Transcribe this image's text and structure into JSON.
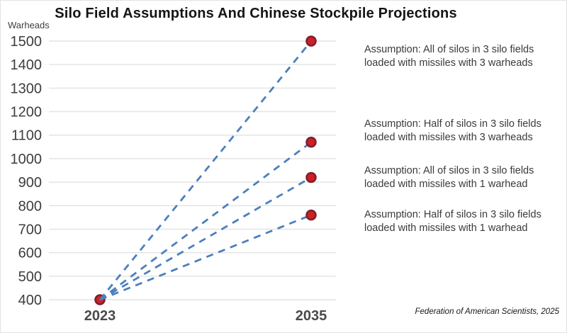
{
  "title": "Silo Field Assumptions And Chinese Stockpile Projections",
  "y_axis_label": "Warheads",
  "attribution": "Federation of American Scientists, 2025",
  "annotations": [
    {
      "line1": "Assumption: All of silos in 3 silo fields",
      "line2": "loaded with missiles with 3 warheads"
    },
    {
      "line1": "Assumption: Half of silos in 3 silo fields",
      "line2": "loaded with missiles with 3 warheads"
    },
    {
      "line1": "Assumption: All of silos in 3 silo fields",
      "line2": "loaded with missiles with 1 warhead"
    },
    {
      "line1": "Assumption: Half of silos in 3 silo fields",
      "line2": "loaded with missiles with 1 warhead"
    }
  ],
  "chart_data": {
    "type": "line",
    "title": "Silo Field Assumptions And Chinese Stockpile Projections",
    "ylabel": "Warheads",
    "x": [
      2023,
      2035
    ],
    "xtick_labels": [
      "2023",
      "2035"
    ],
    "yticks": [
      400,
      500,
      600,
      700,
      800,
      900,
      1000,
      1100,
      1200,
      1300,
      1400,
      1500
    ],
    "ylim": [
      400,
      1500
    ],
    "grid": true,
    "line_style": "dashed",
    "legend_position": "right-annotations",
    "series": [
      {
        "name": "All of silos in 3 silo fields, 3 warheads per missile",
        "values": [
          400,
          1500
        ]
      },
      {
        "name": "Half of silos in 3 silo fields, 3 warheads per missile",
        "values": [
          400,
          1070
        ]
      },
      {
        "name": "All of silos in 3 silo fields, 1 warhead per missile",
        "values": [
          400,
          920
        ]
      },
      {
        "name": "Half of silos in 3 silo fields, 1 warhead per missile",
        "values": [
          400,
          760
        ]
      }
    ],
    "colors": {
      "line": "#4b7fbe",
      "marker_fill": "#cd2127",
      "marker_edge": "#7e1f2b",
      "gridline": "#e4e4e4",
      "tick_label": "#3d3d3d",
      "x_label": "#4a4a4a"
    }
  }
}
